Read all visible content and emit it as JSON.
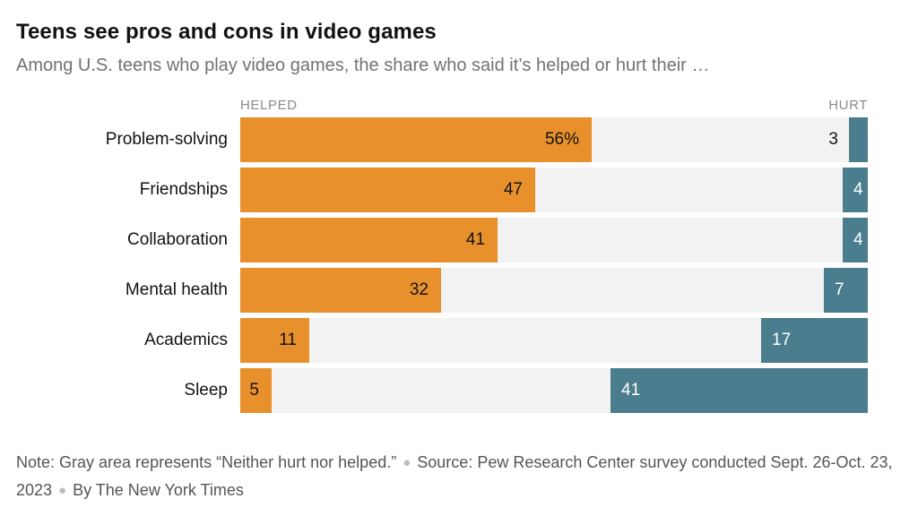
{
  "header": {
    "title": "Teens see pros and cons in video games",
    "subtitle": "Among U.S. teens who play video games, the share who said it’s helped or hurt their …"
  },
  "chart": {
    "helped_axis_label": "HELPED",
    "hurt_axis_label": "HURT"
  },
  "chart_data": {
    "type": "bar",
    "orientation": "horizontal-diverging",
    "title": "Teens see pros and cons in video games",
    "axis_max": 100,
    "neutral_color": "#F2F2F2",
    "neutral_meaning": "Neither hurt nor helped",
    "categories": [
      "Problem-solving",
      "Friendships",
      "Collaboration",
      "Mental health",
      "Academics",
      "Sleep"
    ],
    "series": [
      {
        "name": "Helped",
        "values": [
          56,
          47,
          41,
          32,
          11,
          5
        ],
        "color": "#E8912C"
      },
      {
        "name": "Hurt",
        "values": [
          3,
          4,
          4,
          7,
          17,
          41
        ],
        "color": "#4A7D8D"
      }
    ],
    "value_labels": {
      "helped": [
        "56%",
        "47",
        "41",
        "32",
        "11",
        "5"
      ],
      "hurt": [
        "3",
        "4",
        "4",
        "7",
        "17",
        "41"
      ]
    }
  },
  "footer": {
    "note": "Note: Gray area represents “Neither hurt nor helped.”",
    "source": "Source: Pew Research Center survey conducted Sept. 26-Oct. 23, 2023",
    "byline": "By The New York Times"
  }
}
